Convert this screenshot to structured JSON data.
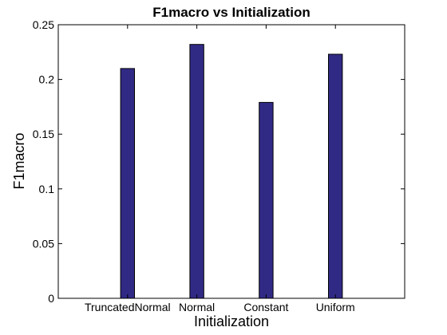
{
  "chart_data": {
    "type": "bar",
    "title": "F1macro vs Initialization",
    "xlabel": "Initialization",
    "ylabel": "F1macro",
    "categories": [
      "TruncatedNormal",
      "Normal",
      "Constant",
      "Uniform"
    ],
    "values": [
      0.21,
      0.232,
      0.179,
      0.223
    ],
    "ylim": [
      0,
      0.25
    ],
    "yticks": [
      0,
      0.05,
      0.1,
      0.15,
      0.2,
      0.25
    ],
    "ytick_labels": [
      "0",
      "0.05",
      "0.1",
      "0.15",
      "0.2",
      "0.25"
    ],
    "grid": false,
    "bar_color": "#312a85"
  }
}
